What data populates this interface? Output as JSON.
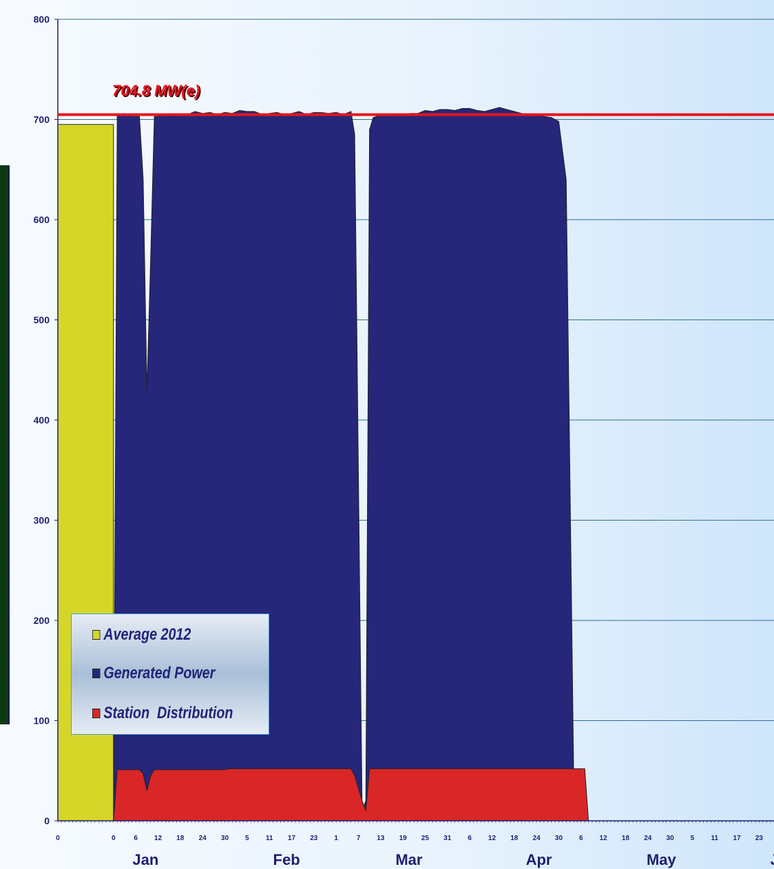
{
  "chart_data": {
    "type": "area",
    "title": "",
    "xlabel": "",
    "ylabel": "",
    "ylim": [
      0,
      800
    ],
    "y_ticks": [
      "0",
      "100",
      "200",
      "300",
      "400",
      "500",
      "600",
      "700",
      "800"
    ],
    "x_day_ticks": [
      "0",
      "0",
      "6",
      "12",
      "18",
      "24",
      "30",
      "5",
      "11",
      "17",
      "23",
      "1",
      "7",
      "13",
      "19",
      "25",
      "31",
      "6",
      "12",
      "18",
      "24",
      "30",
      "6",
      "12",
      "18",
      "24",
      "30",
      "5",
      "11",
      "17",
      "23"
    ],
    "months": [
      "Jan",
      "Feb",
      "Mar",
      "Apr",
      "May",
      "Jun"
    ],
    "x_range_days": [
      -15,
      178
    ],
    "grid": "horizontal",
    "legend_position": "bottom-left",
    "reference_line": {
      "value": 704.8,
      "label": "704.8 MW(e)",
      "color": "#e8141c"
    },
    "series": [
      {
        "name": "Average 2012",
        "color": "#d6d629",
        "x": [
          -15,
          0
        ],
        "values": [
          695,
          695
        ]
      },
      {
        "name": "Generated Power",
        "color": "#26267a",
        "x": [
          0,
          1,
          3,
          5,
          7,
          8,
          9,
          10,
          11,
          12,
          14,
          16,
          18,
          20,
          22,
          24,
          26,
          28,
          30,
          32,
          34,
          36,
          38,
          40,
          42,
          44,
          46,
          48,
          50,
          52,
          54,
          56,
          58,
          60,
          62,
          64,
          65,
          67,
          68,
          69,
          70,
          72,
          74,
          76,
          78,
          80,
          82,
          84,
          86,
          88,
          90,
          92,
          94,
          96,
          98,
          100,
          102,
          104,
          106,
          108,
          110,
          112,
          114,
          116,
          118,
          120,
          122,
          124,
          126,
          127,
          128,
          129,
          178
        ],
        "values": [
          0,
          705,
          706,
          703,
          703,
          640,
          430,
          560,
          703,
          703,
          704,
          703,
          706,
          705,
          708,
          706,
          707,
          705,
          707,
          706,
          709,
          708,
          708,
          705,
          706,
          707,
          705,
          706,
          708,
          705,
          707,
          707,
          706,
          707,
          705,
          708,
          685,
          10,
          20,
          690,
          702,
          704,
          703,
          705,
          704,
          706,
          706,
          709,
          708,
          710,
          710,
          709,
          711,
          711,
          709,
          708,
          710,
          712,
          710,
          708,
          706,
          705,
          704,
          703,
          702,
          698,
          640,
          50,
          0,
          0,
          0,
          0,
          0
        ]
      },
      {
        "name": "Station  Distribution",
        "color": "#d92626",
        "x": [
          0,
          1,
          7,
          8,
          9,
          10,
          11,
          30,
          31,
          64,
          65,
          67,
          68,
          69,
          127,
          128,
          178
        ],
        "values": [
          0,
          51,
          51,
          47,
          30,
          45,
          51,
          51,
          52,
          52,
          45,
          20,
          10,
          52,
          52,
          0,
          0
        ]
      }
    ]
  }
}
